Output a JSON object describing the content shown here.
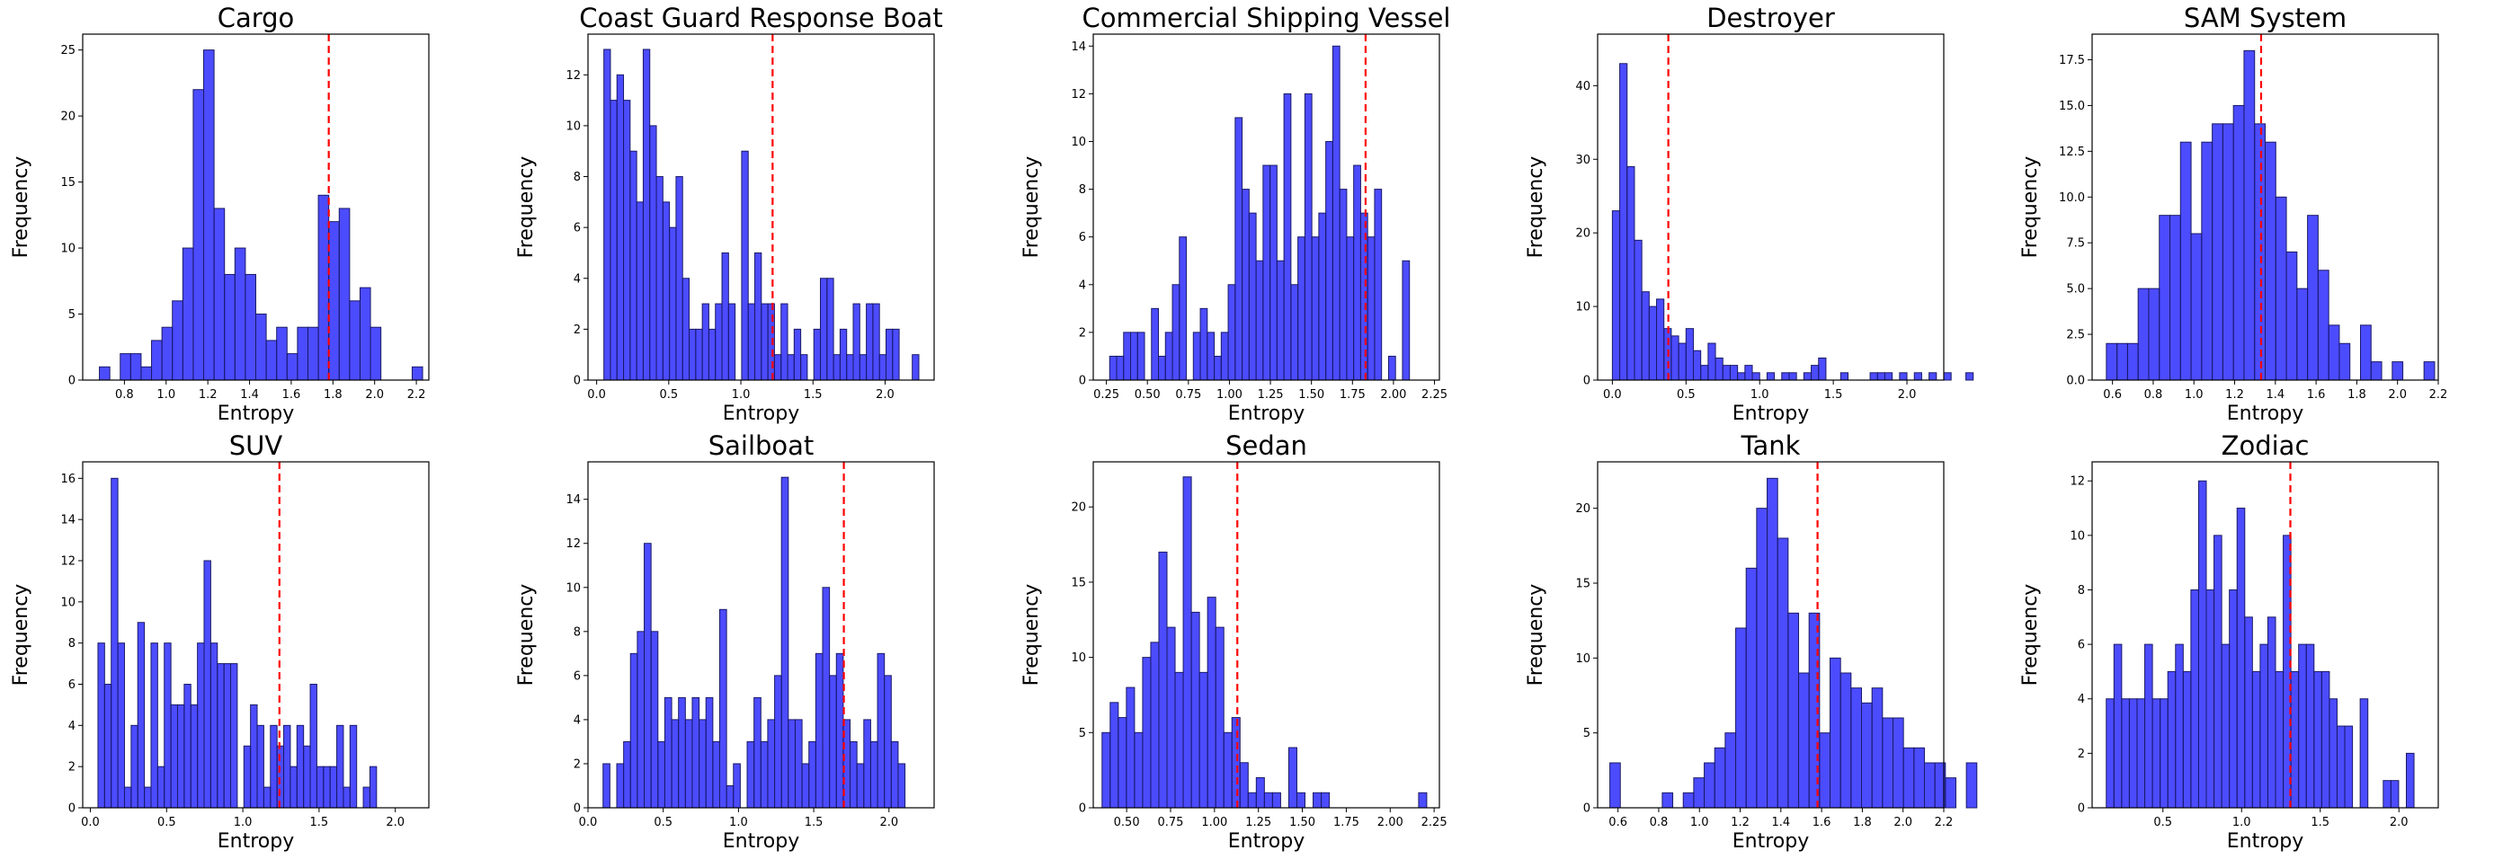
{
  "figure": {
    "background": "#ffffff"
  },
  "style": {
    "bar_fill": "#0000ff",
    "bar_fill_opacity": 0.7,
    "bar_edge": "#1a1a66",
    "mean_line_color": "#ff0000",
    "mean_line_style": "dashed",
    "grid": false
  },
  "chart_data": [
    {
      "type": "bar",
      "title": "Cargo",
      "xlabel": "Entropy",
      "ylabel": "Frequency",
      "xlim": [
        0.6,
        2.26
      ],
      "ylim": [
        0,
        26.2
      ],
      "xticks": [
        0.8,
        1.0,
        1.2,
        1.4,
        1.6,
        1.8,
        2.0,
        2.2
      ],
      "xtick_labels": [
        "0.8",
        "1.0",
        "1.2",
        "1.4",
        "1.6",
        "1.8",
        "2.0",
        "2.2"
      ],
      "yticks": [
        0,
        5,
        10,
        15,
        20,
        25
      ],
      "ytick_labels": [
        "0",
        "5",
        "10",
        "15",
        "20",
        "25"
      ],
      "bins": {
        "start": 0.68,
        "width": 0.05
      },
      "values": [
        1,
        0,
        2,
        2,
        1,
        3,
        4,
        6,
        10,
        22,
        25,
        13,
        8,
        10,
        8,
        5,
        3,
        4,
        2,
        4,
        4,
        14,
        12,
        13,
        6,
        7,
        4,
        0,
        0,
        0,
        1
      ],
      "mean_line": 1.78
    },
    {
      "type": "bar",
      "title": "Coast Guard Response Boat",
      "xlabel": "Entropy",
      "ylabel": "Frequency",
      "xlim": [
        -0.06,
        2.34
      ],
      "ylim": [
        0,
        13.6
      ],
      "xticks": [
        0.0,
        0.5,
        1.0,
        1.5,
        2.0
      ],
      "xtick_labels": [
        "0.0",
        "0.5",
        "1.0",
        "1.5",
        "2.0"
      ],
      "yticks": [
        0,
        2,
        4,
        6,
        8,
        10,
        12
      ],
      "ytick_labels": [
        "0",
        "2",
        "4",
        "6",
        "8",
        "10",
        "12"
      ],
      "bins": {
        "start": 0.05,
        "width": 0.0455
      },
      "values": [
        13,
        11,
        12,
        11,
        9,
        7,
        13,
        10,
        8,
        7,
        6,
        8,
        4,
        2,
        2,
        3,
        2,
        3,
        5,
        3,
        0,
        9,
        3,
        5,
        3,
        3,
        1,
        3,
        1,
        2,
        1,
        0,
        2,
        4,
        4,
        1,
        2,
        1,
        3,
        1,
        3,
        3,
        1,
        2,
        2,
        0,
        0,
        1
      ],
      "mean_line": 1.22
    },
    {
      "type": "bar",
      "title": "Commercial Shipping Vessel",
      "xlabel": "Entropy",
      "ylabel": "Frequency",
      "xlim": [
        0.17,
        2.28
      ],
      "ylim": [
        0,
        14.5
      ],
      "xticks": [
        0.25,
        0.5,
        0.75,
        1.0,
        1.25,
        1.5,
        1.75,
        2.0,
        2.25
      ],
      "xtick_labels": [
        "0.25",
        "0.50",
        "0.75",
        "1.00",
        "1.25",
        "1.50",
        "1.75",
        "2.00",
        "2.25"
      ],
      "yticks": [
        0,
        2,
        4,
        6,
        8,
        10,
        12,
        14
      ],
      "ytick_labels": [
        "0",
        "2",
        "4",
        "6",
        "8",
        "10",
        "12",
        "14"
      ],
      "bins": {
        "start": 0.27,
        "width": 0.0425
      },
      "values": [
        1,
        1,
        2,
        2,
        2,
        0,
        3,
        1,
        2,
        4,
        6,
        0,
        2,
        3,
        2,
        1,
        2,
        4,
        11,
        8,
        7,
        5,
        9,
        9,
        5,
        12,
        4,
        6,
        12,
        6,
        7,
        10,
        14,
        8,
        6,
        9,
        7,
        6,
        8,
        0,
        1,
        0,
        5
      ],
      "mean_line": 1.83
    },
    {
      "type": "bar",
      "title": "Destroyer",
      "xlabel": "Entropy",
      "ylabel": "Frequency",
      "xlim": [
        -0.1,
        2.25
      ],
      "ylim": [
        0,
        47
      ],
      "xticks": [
        0.0,
        0.5,
        1.0,
        1.5,
        2.0
      ],
      "xtick_labels": [
        "0.0",
        "0.5",
        "1.0",
        "1.5",
        "2.0"
      ],
      "yticks": [
        0,
        10,
        20,
        30,
        40
      ],
      "ytick_labels": [
        "0",
        "10",
        "20",
        "30",
        "40"
      ],
      "bins": {
        "start": 0.0,
        "width": 0.05
      },
      "values": [
        23,
        43,
        29,
        19,
        12,
        10,
        11,
        7,
        6,
        5,
        7,
        4,
        2,
        5,
        3,
        2,
        2,
        1,
        2,
        1,
        0,
        1,
        0,
        1,
        1,
        0,
        1,
        2,
        3,
        0,
        0,
        1,
        0,
        0,
        0,
        1,
        1,
        1,
        0,
        1,
        0,
        1,
        0,
        1,
        0,
        1,
        0,
        0,
        1
      ],
      "mean_line": 0.38
    },
    {
      "type": "bar",
      "title": "SAM System",
      "xlabel": "Entropy",
      "ylabel": "Frequency",
      "xlim": [
        0.5,
        2.2
      ],
      "ylim": [
        0,
        18.9
      ],
      "xticks": [
        0.6,
        0.8,
        1.0,
        1.2,
        1.4,
        1.6,
        1.8,
        2.0,
        2.2
      ],
      "xtick_labels": [
        "0.6",
        "0.8",
        "1.0",
        "1.2",
        "1.4",
        "1.6",
        "1.8",
        "2.0",
        "2.2"
      ],
      "yticks": [
        0,
        2.5,
        5.0,
        7.5,
        10.0,
        12.5,
        15.0,
        17.5
      ],
      "ytick_labels": [
        "0.0",
        "2.5",
        "5.0",
        "7.5",
        "10.0",
        "12.5",
        "15.0",
        "17.5"
      ],
      "bins": {
        "start": 0.57,
        "width": 0.052
      },
      "values": [
        2,
        2,
        2,
        5,
        5,
        9,
        9,
        13,
        8,
        13,
        14,
        14,
        15,
        18,
        14,
        13,
        10,
        7,
        5,
        9,
        6,
        3,
        2,
        0,
        3,
        1,
        0,
        1,
        0,
        0,
        1
      ],
      "mean_line": 1.33
    },
    {
      "type": "bar",
      "title": "SUV",
      "xlabel": "Entropy",
      "ylabel": "Frequency",
      "xlim": [
        -0.05,
        2.22
      ],
      "ylim": [
        0,
        16.8
      ],
      "xticks": [
        0.0,
        0.5,
        1.0,
        1.5,
        2.0
      ],
      "xtick_labels": [
        "0.0",
        "0.5",
        "1.0",
        "1.5",
        "2.0"
      ],
      "yticks": [
        0,
        2,
        4,
        6,
        8,
        10,
        12,
        14,
        16
      ],
      "ytick_labels": [
        "0",
        "2",
        "4",
        "6",
        "8",
        "10",
        "12",
        "14",
        "16"
      ],
      "bins": {
        "start": 0.05,
        "width": 0.0435
      },
      "values": [
        8,
        6,
        16,
        8,
        1,
        4,
        9,
        1,
        8,
        2,
        8,
        5,
        5,
        6,
        5,
        8,
        12,
        8,
        7,
        7,
        7,
        0,
        3,
        5,
        4,
        1,
        4,
        3,
        4,
        2,
        4,
        3,
        6,
        2,
        2,
        2,
        4,
        1,
        4,
        0,
        1,
        2
      ],
      "mean_line": 1.24
    },
    {
      "type": "bar",
      "title": "Sailboat",
      "xlabel": "Entropy",
      "ylabel": "Frequency",
      "xlim": [
        0.0,
        2.3
      ],
      "ylim": [
        0,
        15.7
      ],
      "xticks": [
        0.0,
        0.5,
        1.0,
        1.5,
        2.0
      ],
      "xtick_labels": [
        "0.0",
        "0.5",
        "1.0",
        "1.5",
        "2.0"
      ],
      "yticks": [
        0,
        2,
        4,
        6,
        8,
        10,
        12,
        14
      ],
      "ytick_labels": [
        "0",
        "2",
        "4",
        "6",
        "8",
        "10",
        "12",
        "14"
      ],
      "bins": {
        "start": 0.1,
        "width": 0.0456
      },
      "values": [
        2,
        0,
        2,
        3,
        7,
        8,
        12,
        8,
        3,
        5,
        4,
        5,
        4,
        5,
        4,
        5,
        3,
        9,
        1,
        2,
        0,
        3,
        5,
        3,
        4,
        6,
        15,
        4,
        4,
        2,
        3,
        7,
        10,
        6,
        7,
        4,
        3,
        2,
        4,
        3,
        7,
        6,
        3,
        2,
        0,
        0,
        0
      ],
      "mean_line": 1.7
    },
    {
      "type": "bar",
      "title": "Sedan",
      "xlabel": "Entropy",
      "ylabel": "Frequency",
      "xlim": [
        0.31,
        2.28
      ],
      "ylim": [
        0,
        23
      ],
      "xticks": [
        0.5,
        0.75,
        1.0,
        1.25,
        1.5,
        1.75,
        2.0,
        2.25
      ],
      "xtick_labels": [
        "0.50",
        "0.75",
        "1.00",
        "1.25",
        "1.50",
        "1.75",
        "2.00",
        "2.25"
      ],
      "yticks": [
        0,
        5,
        10,
        15,
        20
      ],
      "ytick_labels": [
        "0",
        "5",
        "10",
        "15",
        "20"
      ],
      "bins": {
        "start": 0.36,
        "width": 0.0462
      },
      "values": [
        5,
        7,
        6,
        8,
        5,
        10,
        11,
        17,
        12,
        9,
        22,
        13,
        9,
        14,
        12,
        5,
        6,
        3,
        1,
        2,
        1,
        1,
        0,
        4,
        1,
        0,
        1,
        1,
        0,
        0,
        0,
        0,
        0,
        0,
        0,
        0,
        0,
        0,
        0,
        1
      ],
      "mean_line": 1.13
    },
    {
      "type": "bar",
      "title": "Tank",
      "xlabel": "Entropy",
      "ylabel": "Frequency",
      "xlim": [
        0.5,
        2.2
      ],
      "ylim": [
        0,
        23.1
      ],
      "xticks": [
        0.6,
        0.8,
        1.0,
        1.2,
        1.4,
        1.6,
        1.8,
        2.0,
        2.2
      ],
      "xtick_labels": [
        "0.6",
        "0.8",
        "1.0",
        "1.2",
        "1.4",
        "1.6",
        "1.8",
        "2.0",
        "2.2"
      ],
      "yticks": [
        0,
        5,
        10,
        15,
        20
      ],
      "ytick_labels": [
        "0",
        "5",
        "10",
        "15",
        "20"
      ],
      "bins": {
        "start": 0.56,
        "width": 0.0515
      },
      "values": [
        3,
        0,
        0,
        0,
        0,
        1,
        0,
        1,
        2,
        3,
        4,
        5,
        12,
        16,
        20,
        22,
        18,
        13,
        9,
        13,
        5,
        10,
        9,
        8,
        7,
        8,
        6,
        6,
        4,
        4,
        3,
        3,
        2,
        0,
        3
      ],
      "mean_line": 1.58
    },
    {
      "type": "bar",
      "title": "Zodiac",
      "xlabel": "Entropy",
      "ylabel": "Frequency",
      "xlim": [
        0.05,
        2.25
      ],
      "ylim": [
        0,
        12.7
      ],
      "xticks": [
        0.5,
        1.0,
        1.5,
        2.0
      ],
      "xtick_labels": [
        "0.5",
        "1.0",
        "1.5",
        "2.0"
      ],
      "yticks": [
        0,
        2,
        4,
        6,
        8,
        10,
        12
      ],
      "ytick_labels": [
        "0",
        "2",
        "4",
        "6",
        "8",
        "10",
        "12"
      ],
      "bins": {
        "start": 0.14,
        "width": 0.0489
      },
      "values": [
        4,
        6,
        4,
        4,
        4,
        6,
        4,
        4,
        5,
        6,
        5,
        8,
        12,
        8,
        10,
        6,
        8,
        11,
        7,
        5,
        6,
        7,
        5,
        10,
        5,
        6,
        6,
        5,
        5,
        4,
        3,
        3,
        0,
        4,
        0,
        0,
        1,
        1,
        0,
        2
      ],
      "mean_line": 1.31
    }
  ]
}
